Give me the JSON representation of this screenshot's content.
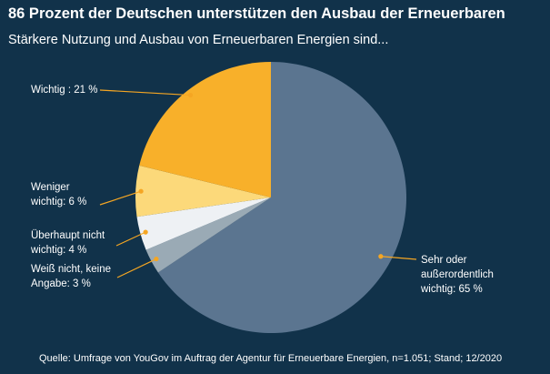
{
  "title": "86 Prozent der Deutschen unterstützen den Ausbau der Erneuerbaren",
  "subtitle": "Stärkere Nutzung und Ausbau von Erneuerbaren Energien sind...",
  "source": "Quelle: Umfrage von YouGov im Auftrag der Agentur für Erneuerbare Energien, n=1.051; Stand; 12/2020",
  "colors": {
    "background": "#11324a",
    "leader": "#f5a623",
    "text": "#ffffff"
  },
  "chart_data": {
    "type": "pie",
    "unit": "%",
    "slices": [
      {
        "key": "sehr-wichtig",
        "label_lines": [
          "Sehr oder",
          "außerordentlich",
          "wichtig: 65 %"
        ],
        "value": 65,
        "color": "#5b7590"
      },
      {
        "key": "weiss-nicht",
        "label_lines": [
          "Weiß nicht, keine",
          "Angabe: 3 %"
        ],
        "value": 3,
        "color": "#9aaab5"
      },
      {
        "key": "ueberhaupt-nicht",
        "label_lines": [
          "Überhaupt nicht",
          "wichtig: 4 %"
        ],
        "value": 4,
        "color": "#eef1f4"
      },
      {
        "key": "weniger-wichtig",
        "label_lines": [
          "Weniger",
          "wichtig: 6 %"
        ],
        "value": 6,
        "color": "#fcd97a"
      },
      {
        "key": "wichtig",
        "label_lines": [
          "Wichtig : 21 %"
        ],
        "value": 21,
        "color": "#f8b02a"
      }
    ]
  }
}
